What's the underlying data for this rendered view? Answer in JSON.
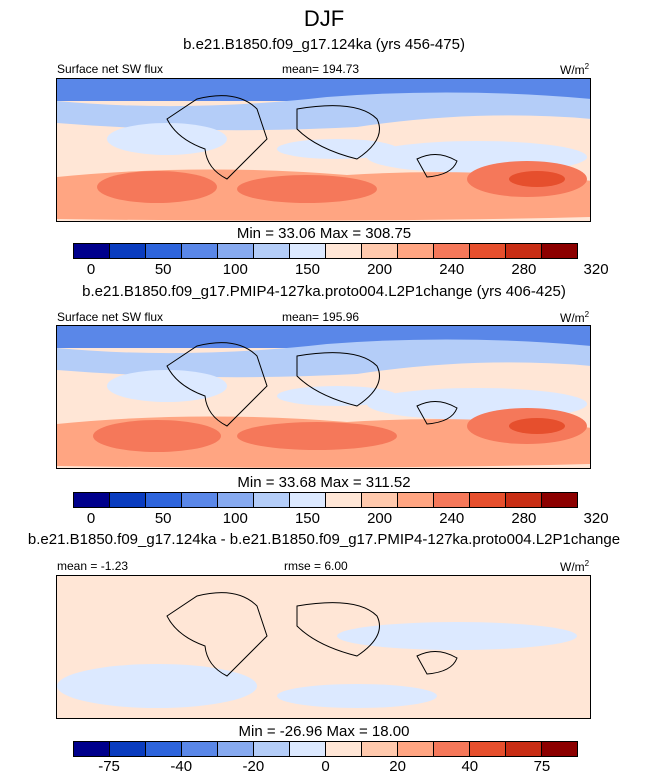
{
  "figure_title": "DJF",
  "units": "W/m",
  "units_sup": "2",
  "colors": [
    "#00008c",
    "#0a3cbf",
    "#2d64dc",
    "#5a87e8",
    "#87aaf0",
    "#b4cdf8",
    "#dce9ff",
    "#ffe6d6",
    "#ffc9ad",
    "#ffa582",
    "#f5785a",
    "#e64f2d",
    "#c82d14",
    "#8c0000"
  ],
  "panels": [
    {
      "title": "b.e21.B1850.f09_g17.124ka (yrs 456-475)",
      "variable": "Surface net SW flux",
      "stat_text": "mean= 194.73",
      "minmax": "Min =  33.06 Max = 308.75",
      "tick_labels": [
        "0",
        "50",
        "100",
        "150",
        "200",
        "240",
        "280",
        "320"
      ]
    },
    {
      "title": "b.e21.B1850.f09_g17.PMIP4-127ka.proto004.L2P1change (yrs 406-425)",
      "variable": "Surface net SW flux",
      "stat_text": "mean= 195.96",
      "minmax": "Min =  33.68 Max = 311.52",
      "tick_labels": [
        "0",
        "50",
        "100",
        "150",
        "200",
        "240",
        "280",
        "320"
      ]
    },
    {
      "title": "b.e21.B1850.f09_g17.124ka - b.e21.B1850.f09_g17.PMIP4-127ka.proto004.L2P1change",
      "left_text": "mean = -1.23",
      "stat_text": "rmse =  6.00",
      "minmax": "Min = -26.96 Max =  18.00",
      "tick_labels": [
        "-75",
        "-40",
        "-20",
        "0",
        "20",
        "40",
        "75"
      ]
    }
  ],
  "chart_data": [
    {
      "type": "heatmap",
      "title": "b.e21.B1850.f09_g17.124ka (yrs 456-475)",
      "variable": "Surface net SW flux",
      "units": "W/m2",
      "mean": 194.73,
      "min": 33.06,
      "max": 308.75,
      "contour_levels": [
        0,
        25,
        50,
        75,
        100,
        125,
        150,
        175,
        200,
        220,
        240,
        260,
        280,
        300,
        320
      ]
    },
    {
      "type": "heatmap",
      "title": "b.e21.B1850.f09_g17.PMIP4-127ka.proto004.L2P1change (yrs 406-425)",
      "variable": "Surface net SW flux",
      "units": "W/m2",
      "mean": 195.96,
      "min": 33.68,
      "max": 311.52,
      "contour_levels": [
        0,
        25,
        50,
        75,
        100,
        125,
        150,
        175,
        200,
        220,
        240,
        260,
        280,
        300,
        320
      ]
    },
    {
      "type": "heatmap",
      "title": "b.e21.B1850.f09_g17.124ka - b.e21.B1850.f09_g17.PMIP4-127ka.proto004.L2P1change",
      "units": "W/m2",
      "mean": -1.23,
      "rmse": 6.0,
      "min": -26.96,
      "max": 18.0,
      "contour_levels": [
        -75,
        -60,
        -40,
        -30,
        -20,
        -10,
        0,
        10,
        20,
        30,
        40,
        60,
        75
      ]
    }
  ]
}
